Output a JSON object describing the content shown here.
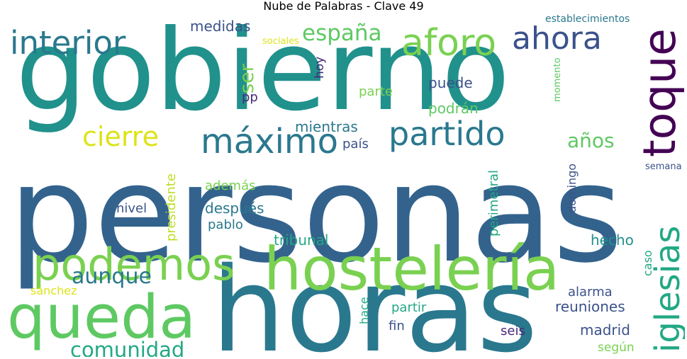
{
  "title": "Nube de Palabras - Clave 49",
  "words": [
    {
      "text": "personas",
      "color": "#33638d"
    },
    {
      "text": "gobierno",
      "color": "#21918c"
    },
    {
      "text": "horas",
      "color": "#2a788e"
    },
    {
      "text": "hostelería",
      "color": "#7ad151"
    },
    {
      "text": "queda",
      "color": "#5ec962"
    },
    {
      "text": "podemos",
      "color": "#7ad151"
    },
    {
      "text": "toque",
      "color": "#440154"
    },
    {
      "text": "iglesias",
      "color": "#22a884"
    },
    {
      "text": "aforo",
      "color": "#7ad151"
    },
    {
      "text": "interior",
      "color": "#2a788e"
    },
    {
      "text": "partido",
      "color": "#2a788e"
    },
    {
      "text": "máximo",
      "color": "#2a788e"
    },
    {
      "text": "ahora",
      "color": "#3b528b"
    },
    {
      "text": "cierre",
      "color": "#dde318"
    },
    {
      "text": "españa",
      "color": "#5ec962"
    },
    {
      "text": "comunidad",
      "color": "#22a884"
    },
    {
      "text": "aunque",
      "color": "#2a788e"
    },
    {
      "text": "años",
      "color": "#5ec962"
    },
    {
      "text": "ser",
      "color": "#7ad151"
    },
    {
      "text": "tribunal",
      "color": "#22a884"
    },
    {
      "text": "hecho",
      "color": "#21918c"
    },
    {
      "text": "reuniones",
      "color": "#3b528b"
    },
    {
      "text": "medidas",
      "color": "#3b528b"
    },
    {
      "text": "mientras",
      "color": "#2a788e"
    },
    {
      "text": "puede",
      "color": "#3b528b"
    },
    {
      "text": "podrán",
      "color": "#5ec962"
    },
    {
      "text": "después",
      "color": "#2a788e"
    },
    {
      "text": "madrid",
      "color": "#3b528b"
    },
    {
      "text": "parte",
      "color": "#7ad151"
    },
    {
      "text": "país",
      "color": "#3b528b"
    },
    {
      "text": "además",
      "color": "#7ad151"
    },
    {
      "text": "nivel",
      "color": "#3b528b"
    },
    {
      "text": "pablo",
      "color": "#2a788e"
    },
    {
      "text": "alarma",
      "color": "#3b528b"
    },
    {
      "text": "partir",
      "color": "#22a884"
    },
    {
      "text": "seis",
      "color": "#482878"
    },
    {
      "text": "fin",
      "color": "#3b528b"
    },
    {
      "text": "según",
      "color": "#7ad151"
    },
    {
      "text": "pp",
      "color": "#482878"
    },
    {
      "text": "hoy",
      "color": "#482878"
    },
    {
      "text": "sánchez",
      "color": "#dde318"
    },
    {
      "text": "sociales",
      "color": "#dde318"
    },
    {
      "text": "establecimientos",
      "color": "#2a788e"
    },
    {
      "text": "semana",
      "color": "#3b528b"
    },
    {
      "text": "domingo",
      "color": "#3b528b"
    },
    {
      "text": "perimetral",
      "color": "#22a884"
    },
    {
      "text": "presidente",
      "color": "#bddf26"
    },
    {
      "text": "hace",
      "color": "#22a884"
    },
    {
      "text": "caso",
      "color": "#22a884"
    },
    {
      "text": "momento",
      "color": "#5ec962"
    }
  ]
}
